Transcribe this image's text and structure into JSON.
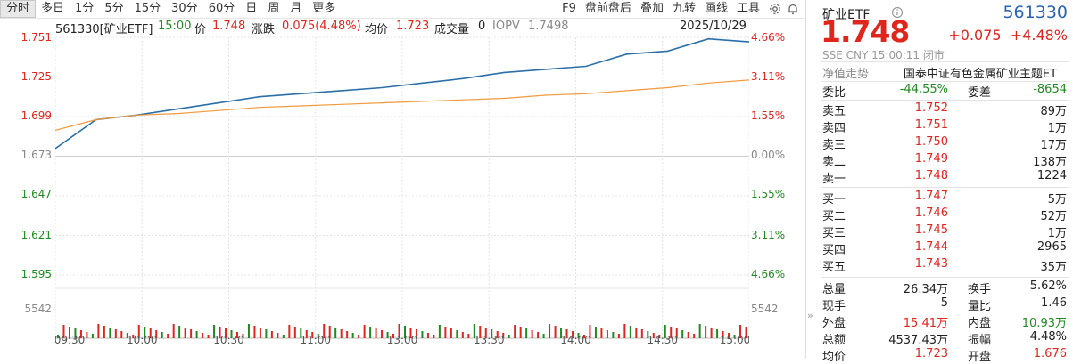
{
  "toolbar": {
    "tabs": [
      "分时",
      "多日",
      "1分",
      "5分",
      "15分",
      "30分",
      "60分",
      "日",
      "周",
      "月",
      "更多"
    ],
    "right": [
      "F9",
      "盘前盘后",
      "叠加",
      "九转",
      "画线",
      "工具"
    ]
  },
  "info": {
    "symbol": "561330[矿业ETF]",
    "time": "15:00",
    "price_label": "价",
    "price": "1.748",
    "chg_label": "涨跌",
    "chg": "0.075(4.48%)",
    "avg_label": "均价",
    "avg": "1.723",
    "vol_label": "成交量",
    "vol": "0",
    "iopv_label": "IOPV",
    "iopv": "1.7498",
    "date": "2025/10/29"
  },
  "axis": {
    "left": [
      "1.751",
      "1.725",
      "1.699",
      "1.673",
      "1.647",
      "1.621",
      "1.595",
      "5542"
    ],
    "right": [
      "4.66%",
      "3.11%",
      "1.55%",
      "0.00%",
      "1.55%",
      "3.11%",
      "4.66%",
      "5542"
    ],
    "time": [
      "09:30",
      "10:00",
      "10:30",
      "11:00",
      "13:00",
      "13:30",
      "14:00",
      "14:30",
      "15:00"
    ]
  },
  "colors": {
    "up": "#e0251c",
    "down": "#1f8a1f",
    "price_line": "#2b6fa8",
    "avg_line": "#f39a3c",
    "grid": "#e4e4e4"
  },
  "chart_data": {
    "type": "line",
    "x": [
      "09:30",
      "09:45",
      "10:00",
      "10:15",
      "10:30",
      "10:45",
      "11:00",
      "11:15",
      "11:30",
      "13:00",
      "13:15",
      "13:30",
      "13:45",
      "14:00",
      "14:15",
      "14:30",
      "14:45",
      "15:00"
    ],
    "series": [
      {
        "values": [
          1.678,
          1.697,
          1.7,
          1.704,
          1.708,
          1.712,
          1.714,
          1.716,
          1.718,
          1.721,
          1.724,
          1.728,
          1.73,
          1.732,
          1.74,
          1.742,
          1.75,
          1.748
        ]
      },
      {
        "values": [
          1.69,
          1.697,
          1.7,
          1.701,
          1.703,
          1.705,
          1.706,
          1.707,
          1.708,
          1.709,
          1.71,
          1.711,
          1.713,
          1.714,
          1.716,
          1.718,
          1.721,
          1.723
        ]
      }
    ],
    "ylim": [
      1.595,
      1.751
    ],
    "volume_max": 5542
  },
  "panel": {
    "name": "矿业ETF",
    "code": "561330",
    "price": "1.748",
    "change": "+0.075",
    "change_pct": "+4.48%",
    "meta": "SSE  CNY  15:00:11  闭市",
    "nav_label": "净值走势",
    "nav_value": "国泰中证有色金属矿业主题ET",
    "wb_label": "委比",
    "wb_value": "-44.55%",
    "wc_label": "委差",
    "wc_value": "-8654",
    "sell": [
      {
        "label": "卖五",
        "price": "1.752",
        "vol": "89万"
      },
      {
        "label": "卖四",
        "price": "1.751",
        "vol": "1万"
      },
      {
        "label": "卖三",
        "price": "1.750",
        "vol": "17万"
      },
      {
        "label": "卖二",
        "price": "1.749",
        "vol": "138万"
      },
      {
        "label": "卖一",
        "price": "1.748",
        "vol": "1224"
      }
    ],
    "buy": [
      {
        "label": "买一",
        "price": "1.747",
        "vol": "5万"
      },
      {
        "label": "买二",
        "price": "1.746",
        "vol": "52万"
      },
      {
        "label": "买三",
        "price": "1.745",
        "vol": "1万"
      },
      {
        "label": "买四",
        "price": "1.744",
        "vol": "2965"
      },
      {
        "label": "买五",
        "price": "1.743",
        "vol": "35万"
      }
    ],
    "stats": [
      {
        "l1": "总量",
        "v1": "26.34万",
        "l2": "换手",
        "v2": "5.62%",
        "c1": "#222",
        "c2": "#222"
      },
      {
        "l1": "现手",
        "v1": "5",
        "l2": "量比",
        "v2": "1.46",
        "c1": "#222",
        "c2": "#222"
      },
      {
        "l1": "外盘",
        "v1": "15.41万",
        "l2": "内盘",
        "v2": "10.93万",
        "c1": "#e0251c",
        "c2": "#1f8a1f"
      },
      {
        "l1": "总额",
        "v1": "4537.43万",
        "l2": "振幅",
        "v2": "4.48%",
        "c1": "#222",
        "c2": "#222"
      },
      {
        "l1": "均价",
        "v1": "1.723",
        "l2": "开盘",
        "v2": "1.676",
        "c1": "#e0251c",
        "c2": "#e0251c"
      }
    ]
  }
}
